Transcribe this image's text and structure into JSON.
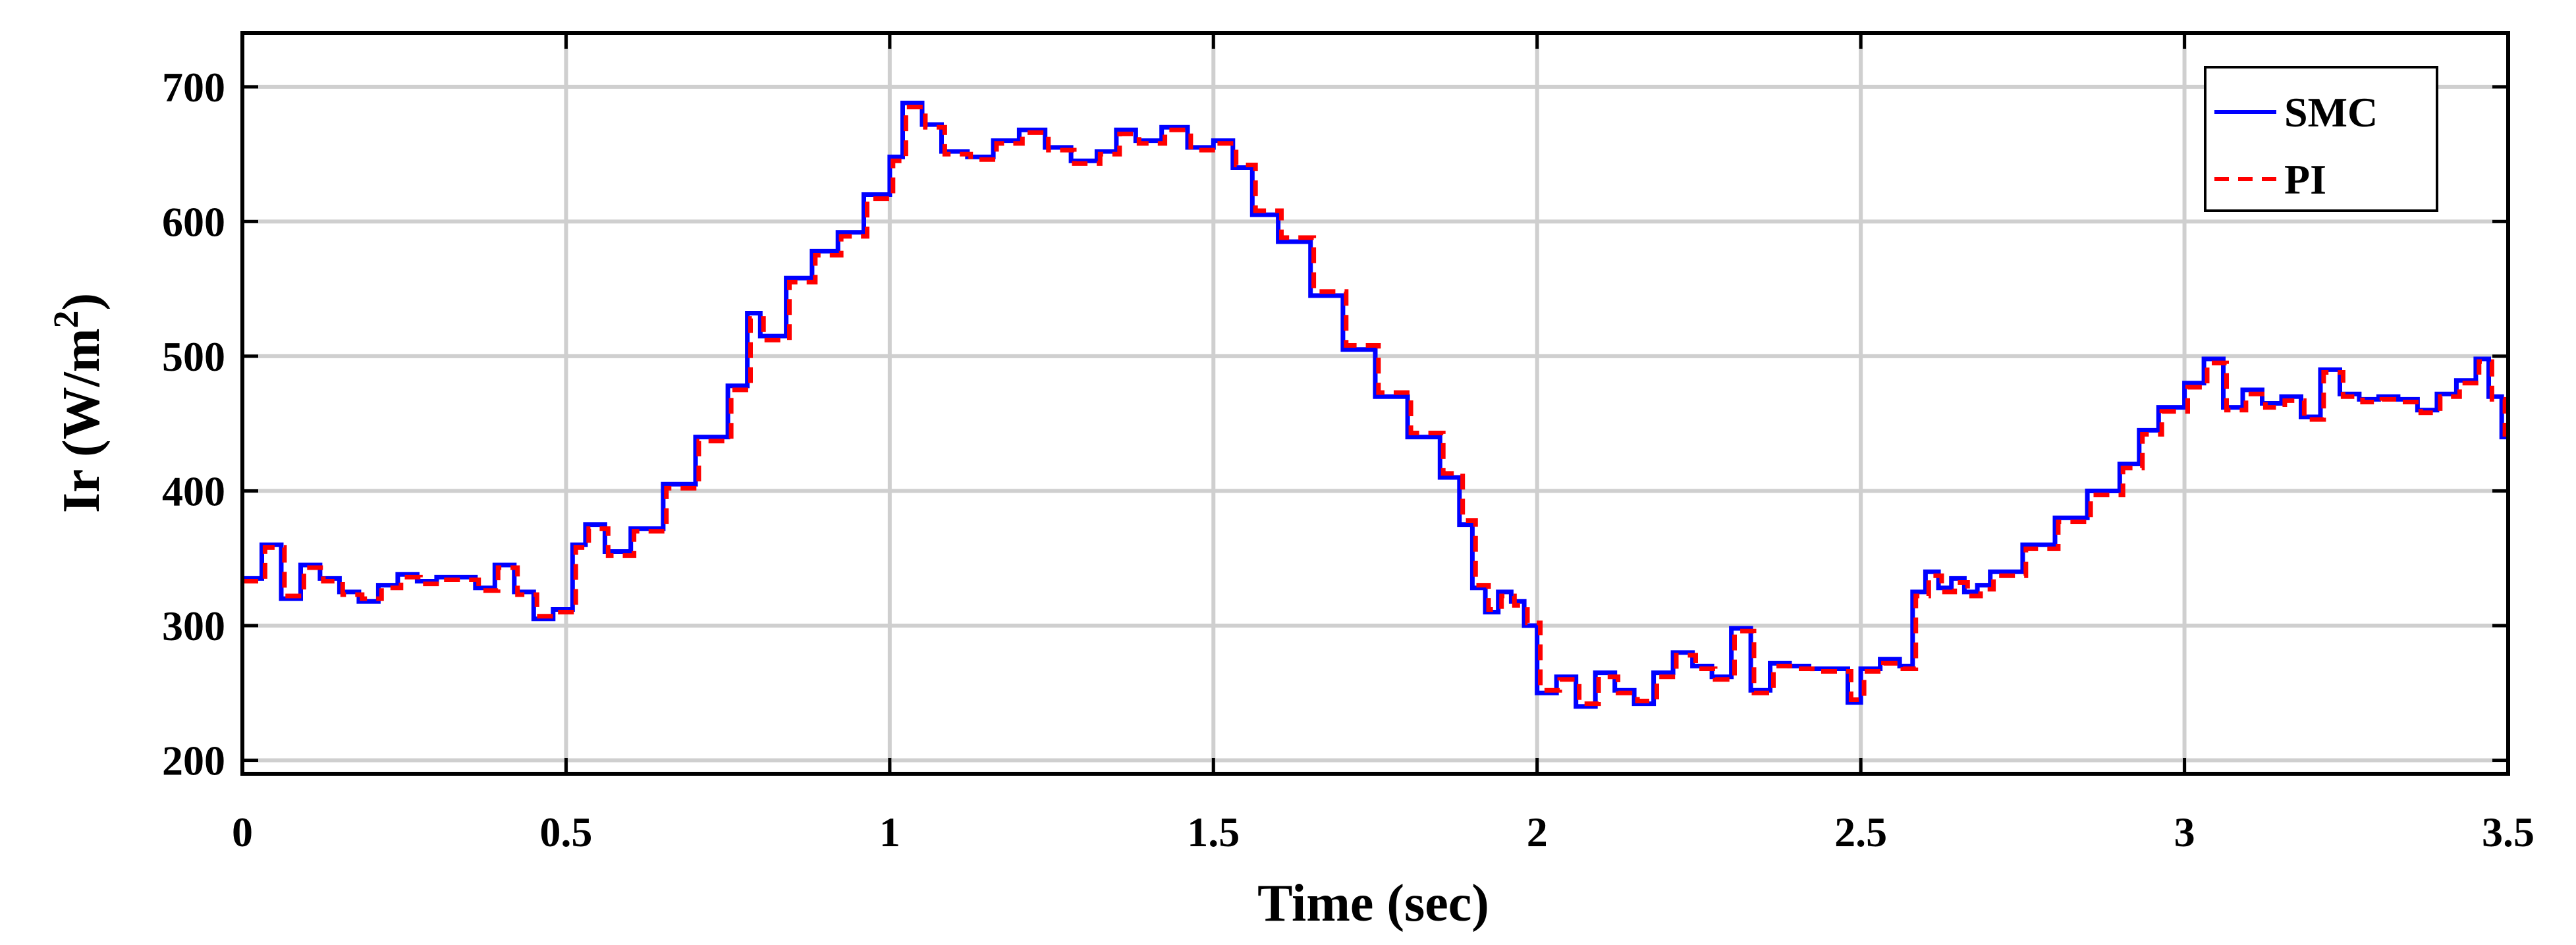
{
  "chart_data": {
    "type": "line",
    "xlabel": "Time (sec)",
    "ylabel_main": "Ir (W/m",
    "ylabel_sup": "2",
    "ylabel_close": ")",
    "xlim": [
      0,
      3.5
    ],
    "ylim": [
      190,
      740
    ],
    "grid": true,
    "legend_position": "top-right",
    "x_ticks": [
      {
        "value": 0,
        "label": "0"
      },
      {
        "value": 0.5,
        "label": "0.5"
      },
      {
        "value": 1,
        "label": "1"
      },
      {
        "value": 1.5,
        "label": "1.5"
      },
      {
        "value": 2,
        "label": "2"
      },
      {
        "value": 2.5,
        "label": "2.5"
      },
      {
        "value": 3,
        "label": "3"
      },
      {
        "value": 3.5,
        "label": "3.5"
      }
    ],
    "y_ticks": [
      {
        "value": 200,
        "label": "200"
      },
      {
        "value": 300,
        "label": "300"
      },
      {
        "value": 400,
        "label": "400"
      },
      {
        "value": 500,
        "label": "500"
      },
      {
        "value": 600,
        "label": "600"
      },
      {
        "value": 700,
        "label": "700"
      }
    ],
    "series": [
      {
        "name": "SMC",
        "color": "#0000ff",
        "dash": "solid",
        "step": true,
        "x": [
          0,
          0.03,
          0.06,
          0.09,
          0.12,
          0.15,
          0.18,
          0.21,
          0.24,
          0.27,
          0.3,
          0.33,
          0.36,
          0.39,
          0.42,
          0.45,
          0.48,
          0.51,
          0.53,
          0.56,
          0.6,
          0.65,
          0.7,
          0.75,
          0.78,
          0.8,
          0.84,
          0.88,
          0.92,
          0.96,
          1.0,
          1.02,
          1.05,
          1.08,
          1.12,
          1.16,
          1.2,
          1.24,
          1.28,
          1.32,
          1.35,
          1.38,
          1.42,
          1.46,
          1.5,
          1.53,
          1.56,
          1.6,
          1.65,
          1.7,
          1.75,
          1.8,
          1.85,
          1.88,
          1.9,
          1.92,
          1.94,
          1.96,
          1.98,
          2.0,
          2.03,
          2.06,
          2.09,
          2.12,
          2.15,
          2.18,
          2.21,
          2.24,
          2.27,
          2.3,
          2.33,
          2.36,
          2.39,
          2.42,
          2.45,
          2.48,
          2.5,
          2.53,
          2.56,
          2.58,
          2.6,
          2.62,
          2.64,
          2.66,
          2.68,
          2.7,
          2.75,
          2.8,
          2.85,
          2.9,
          2.93,
          2.96,
          3.0,
          3.03,
          3.06,
          3.09,
          3.12,
          3.15,
          3.18,
          3.21,
          3.24,
          3.27,
          3.3,
          3.33,
          3.36,
          3.39,
          3.42,
          3.45,
          3.47,
          3.49
        ],
        "values": [
          335,
          360,
          320,
          345,
          335,
          325,
          318,
          330,
          338,
          333,
          336,
          336,
          328,
          345,
          325,
          305,
          312,
          360,
          375,
          355,
          372,
          405,
          440,
          478,
          532,
          515,
          558,
          578,
          592,
          620,
          648,
          688,
          672,
          652,
          648,
          660,
          668,
          655,
          645,
          652,
          668,
          660,
          670,
          655,
          660,
          640,
          605,
          585,
          545,
          505,
          470,
          440,
          410,
          375,
          328,
          310,
          325,
          318,
          300,
          250,
          262,
          240,
          265,
          252,
          242,
          265,
          280,
          270,
          262,
          298,
          252,
          272,
          270,
          268,
          268,
          243,
          268,
          275,
          270,
          325,
          340,
          328,
          335,
          325,
          330,
          340,
          360,
          380,
          400,
          420,
          445,
          462,
          480,
          498,
          462,
          475,
          465,
          470,
          455,
          490,
          472,
          468,
          470,
          468,
          460,
          472,
          482,
          498,
          470,
          440
        ]
      },
      {
        "name": "PI",
        "color": "#ff0000",
        "dash": "dashed",
        "step": true,
        "x": [
          0,
          0.035,
          0.065,
          0.095,
          0.125,
          0.155,
          0.185,
          0.215,
          0.245,
          0.275,
          0.305,
          0.335,
          0.365,
          0.395,
          0.425,
          0.455,
          0.485,
          0.515,
          0.535,
          0.565,
          0.605,
          0.655,
          0.705,
          0.755,
          0.785,
          0.805,
          0.845,
          0.885,
          0.925,
          0.965,
          1.005,
          1.025,
          1.055,
          1.085,
          1.125,
          1.165,
          1.205,
          1.245,
          1.285,
          1.325,
          1.355,
          1.385,
          1.425,
          1.465,
          1.505,
          1.535,
          1.565,
          1.605,
          1.655,
          1.705,
          1.755,
          1.805,
          1.855,
          1.885,
          1.905,
          1.925,
          1.945,
          1.965,
          1.985,
          2.005,
          2.035,
          2.065,
          2.095,
          2.125,
          2.155,
          2.185,
          2.215,
          2.245,
          2.275,
          2.305,
          2.335,
          2.365,
          2.395,
          2.425,
          2.455,
          2.485,
          2.505,
          2.535,
          2.565,
          2.585,
          2.605,
          2.625,
          2.645,
          2.665,
          2.685,
          2.705,
          2.755,
          2.805,
          2.855,
          2.905,
          2.935,
          2.965,
          3.005,
          3.035,
          3.065,
          3.095,
          3.125,
          3.155,
          3.185,
          3.215,
          3.245,
          3.275,
          3.305,
          3.335,
          3.365,
          3.395,
          3.425,
          3.455,
          3.475,
          3.495
        ],
        "values": [
          333,
          358,
          322,
          343,
          333,
          323,
          320,
          328,
          336,
          331,
          334,
          334,
          326,
          343,
          323,
          307,
          310,
          358,
          372,
          352,
          370,
          402,
          437,
          475,
          528,
          512,
          555,
          575,
          589,
          617,
          645,
          685,
          670,
          650,
          646,
          658,
          666,
          653,
          643,
          650,
          665,
          658,
          668,
          653,
          658,
          642,
          608,
          588,
          548,
          508,
          473,
          443,
          413,
          378,
          330,
          312,
          322,
          315,
          302,
          252,
          260,
          242,
          262,
          250,
          244,
          262,
          278,
          268,
          260,
          296,
          250,
          270,
          268,
          266,
          266,
          245,
          266,
          272,
          268,
          322,
          337,
          325,
          332,
          322,
          327,
          337,
          357,
          377,
          397,
          417,
          442,
          459,
          477,
          495,
          460,
          472,
          462,
          467,
          453,
          488,
          470,
          466,
          468,
          466,
          458,
          470,
          480,
          496,
          468,
          442
        ]
      }
    ]
  }
}
